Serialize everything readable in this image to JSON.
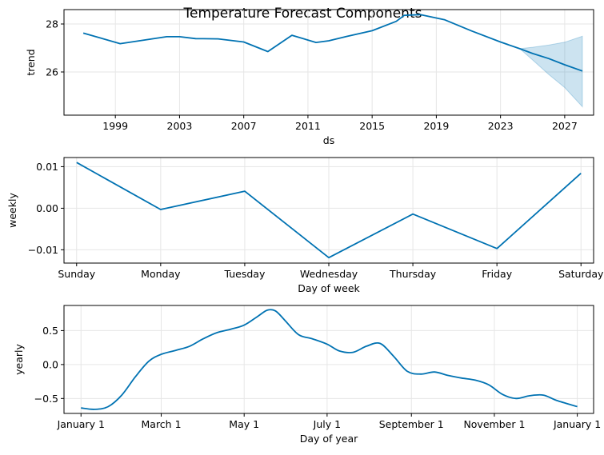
{
  "figure": {
    "title": "Temperature Forecast Components"
  },
  "colors": {
    "line": "#0072B2",
    "band": "#0072B2",
    "grid": "#e6e6e6",
    "axis": "#000000"
  },
  "chart_data": [
    {
      "type": "line",
      "name": "trend",
      "xlabel": "ds",
      "ylabel": "trend",
      "xlim": [
        1995.8,
        2028.8
      ],
      "ylim": [
        24.2,
        28.6
      ],
      "xticks": [
        1999,
        2003,
        2007,
        2011,
        2015,
        2019,
        2023,
        2027
      ],
      "xtick_labels": [
        "1999",
        "2003",
        "2007",
        "2011",
        "2015",
        "2019",
        "2023",
        "2027"
      ],
      "yticks": [
        26,
        28
      ],
      "ytick_labels": [
        "26",
        "28"
      ],
      "grid": true,
      "x": [
        1997.0,
        1999.3,
        2002.2,
        2003.0,
        2004.0,
        2005.4,
        2007.0,
        2008.5,
        2010.0,
        2011.5,
        2012.3,
        2013.4,
        2015.0,
        2016.5,
        2017.0,
        2018.0,
        2019.5,
        2021.2,
        2023.0,
        2024.2,
        2025.0,
        2026.0,
        2027.0,
        2028.1
      ],
      "y": [
        27.62,
        27.18,
        27.47,
        27.47,
        27.39,
        27.38,
        27.25,
        26.85,
        27.53,
        27.23,
        27.3,
        27.48,
        27.72,
        28.11,
        28.36,
        28.39,
        28.18,
        27.71,
        27.25,
        26.97,
        26.77,
        26.56,
        26.3,
        26.04
      ],
      "uncertainty": {
        "x": [
          2024.2,
          2025.0,
          2026.0,
          2027.0,
          2028.1
        ],
        "upper": [
          26.97,
          27.03,
          27.12,
          27.24,
          27.49
        ],
        "lower": [
          26.97,
          26.5,
          25.9,
          25.35,
          24.55
        ]
      }
    },
    {
      "type": "line",
      "name": "weekly",
      "xlabel": "Day of week",
      "ylabel": "weekly",
      "categories": [
        "Sunday",
        "Monday",
        "Tuesday",
        "Wednesday",
        "Thursday",
        "Friday",
        "Saturday"
      ],
      "values": [
        0.011,
        -0.0003,
        0.0041,
        -0.0119,
        -0.0014,
        -0.0097,
        0.0084
      ],
      "ylim": [
        -0.0132,
        0.0122
      ],
      "yticks": [
        -0.01,
        0.0,
        0.01
      ],
      "ytick_labels": [
        "−0.01",
        "0.00",
        "0.01"
      ],
      "grid": true
    },
    {
      "type": "line",
      "name": "yearly",
      "xlabel": "Day of year",
      "ylabel": "yearly",
      "xlim": [
        -12.5,
        377
      ],
      "ylim": [
        -0.72,
        0.87
      ],
      "xticks": [
        0,
        59,
        120,
        181,
        243,
        304,
        365
      ],
      "xtick_labels": [
        "January 1",
        "March 1",
        "May 1",
        "July 1",
        "September 1",
        "November 1",
        "January 1"
      ],
      "yticks": [
        -0.5,
        0.0,
        0.5
      ],
      "ytick_labels": [
        "−0.5",
        "0.0",
        "0.5"
      ],
      "grid": true,
      "x": [
        0,
        10,
        20,
        30,
        40,
        50,
        59,
        70,
        80,
        90,
        100,
        110,
        120,
        130,
        137,
        143,
        150,
        160,
        170,
        181,
        190,
        200,
        210,
        220,
        230,
        240,
        250,
        260,
        270,
        280,
        290,
        300,
        310,
        320,
        330,
        340,
        350,
        365
      ],
      "y": [
        -0.64,
        -0.66,
        -0.62,
        -0.45,
        -0.18,
        0.05,
        0.15,
        0.21,
        0.27,
        0.38,
        0.47,
        0.52,
        0.58,
        0.71,
        0.8,
        0.79,
        0.65,
        0.44,
        0.38,
        0.3,
        0.2,
        0.18,
        0.27,
        0.31,
        0.12,
        -0.1,
        -0.14,
        -0.11,
        -0.16,
        -0.2,
        -0.23,
        -0.3,
        -0.44,
        -0.5,
        -0.46,
        -0.45,
        -0.53,
        -0.62
      ]
    }
  ]
}
